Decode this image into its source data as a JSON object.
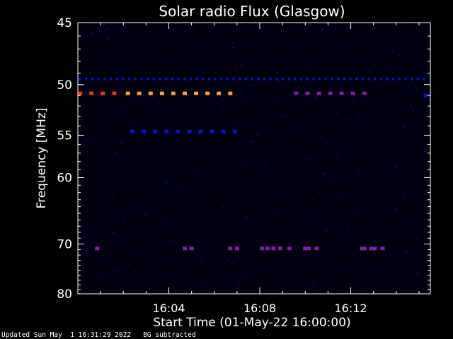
{
  "footer": {
    "updated": "Updated Sun May  1 16:31:29 2022",
    "note": "BG subtracted"
  },
  "chart_data": {
    "type": "heatmap",
    "title": "Solar radio Flux (Glasgow)",
    "xlabel": "Start Time (01-May-22 16:00:00)",
    "ylabel": "Frequency [MHz]",
    "x_unit": "minutes after 16:00",
    "xlim": [
      0,
      15.5
    ],
    "ylim": [
      80,
      45
    ],
    "y_scale": "reciprocal (proportional to 1/f)",
    "x_ticks": [
      {
        "value": 4,
        "label": "16:04"
      },
      {
        "value": 8,
        "label": "16:08"
      },
      {
        "value": 12,
        "label": "16:12"
      }
    ],
    "y_ticks": [
      {
        "value": 45,
        "label": "45"
      },
      {
        "value": 50,
        "label": "50"
      },
      {
        "value": 55,
        "label": "55"
      },
      {
        "value": 60,
        "label": "60"
      },
      {
        "value": 70,
        "label": "70"
      },
      {
        "value": 80,
        "label": "80"
      }
    ],
    "colors": {
      "background": "#000010",
      "low": "#1010c0",
      "mid": "#8020a0",
      "high": "#ff3010",
      "peak": "#ffa040"
    },
    "emission_bands": [
      {
        "freq": 49.5,
        "x_start": 0.1,
        "x_end": 15.4,
        "step": 0.27,
        "level": "low"
      },
      {
        "freq": 50.8,
        "x_start": 0.1,
        "x_end": 1.7,
        "step": 0.5,
        "level": "high"
      },
      {
        "freq": 50.8,
        "x_start": 2.2,
        "x_end": 7.0,
        "step": 0.5,
        "level": "peak"
      },
      {
        "freq": 50.8,
        "x_start": 9.6,
        "x_end": 12.7,
        "step": 0.5,
        "level": "mid"
      },
      {
        "freq": 54.6,
        "x_start": 2.4,
        "x_end": 7.0,
        "step": 0.5,
        "level": "low"
      },
      {
        "freq": 70.8,
        "x_values": [
          0.85,
          4.7,
          5.0,
          6.7,
          7.0,
          8.1,
          8.35,
          8.6,
          8.9,
          9.3,
          10.0,
          10.15,
          10.5,
          12.5,
          12.6,
          12.9,
          13.05,
          13.4
        ],
        "level": "mid"
      },
      {
        "freq": 51.0,
        "x_values": [
          15.3
        ],
        "level": "low"
      }
    ]
  }
}
